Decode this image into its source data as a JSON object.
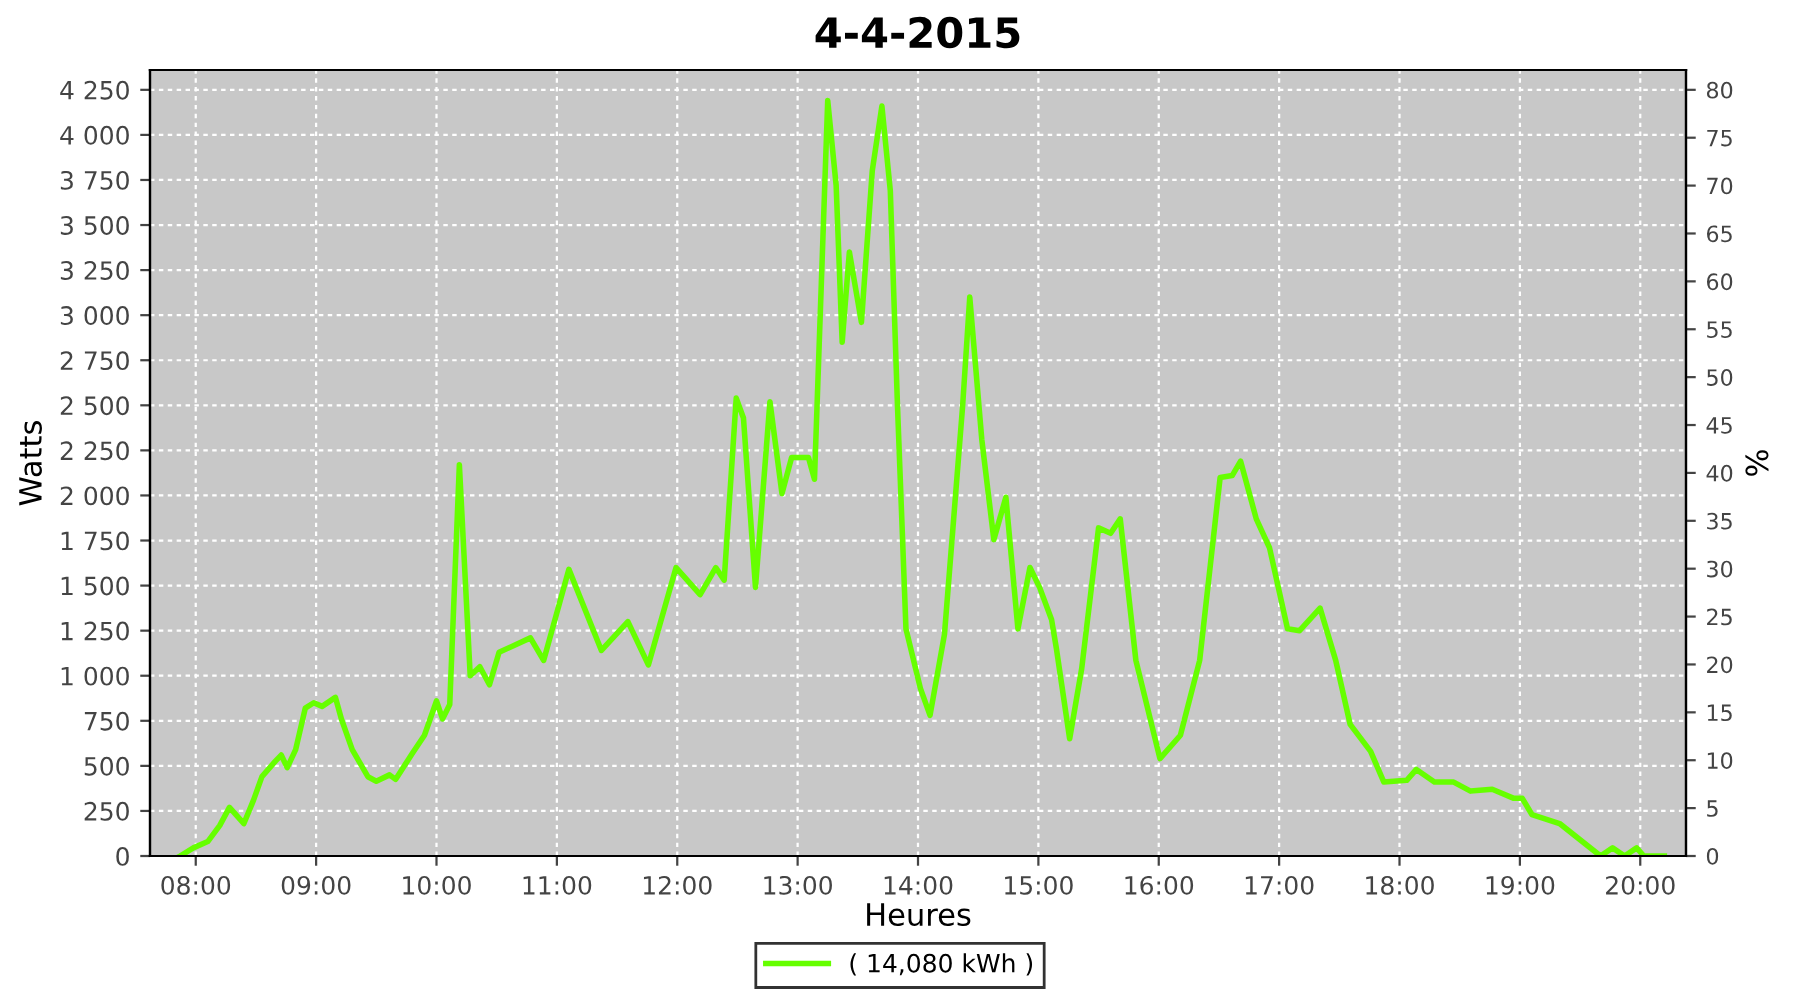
{
  "chart_data": {
    "type": "line",
    "title": "4-4-2015",
    "xlabel": "Heures",
    "ylabel": "Watts",
    "y2label": "%",
    "xlim": [
      7.62,
      20.38
    ],
    "xticks": [
      {
        "value": 8,
        "label": "08:00"
      },
      {
        "value": 9,
        "label": "09:00"
      },
      {
        "value": 10,
        "label": "10:00"
      },
      {
        "value": 11,
        "label": "11:00"
      },
      {
        "value": 12,
        "label": "12:00"
      },
      {
        "value": 13,
        "label": "13:00"
      },
      {
        "value": 14,
        "label": "14:00"
      },
      {
        "value": 15,
        "label": "15:00"
      },
      {
        "value": 16,
        "label": "16:00"
      },
      {
        "value": 17,
        "label": "17:00"
      },
      {
        "value": 18,
        "label": "18:00"
      },
      {
        "value": 19,
        "label": "19:00"
      },
      {
        "value": 20,
        "label": "20:00"
      }
    ],
    "ylim": [
      0,
      4360
    ],
    "yticks": [
      0,
      250,
      500,
      750,
      {
        "value": 1000,
        "label": "1 000"
      },
      {
        "value": 1250,
        "label": "1 250"
      },
      {
        "value": 1500,
        "label": "1 500"
      },
      {
        "value": 1750,
        "label": "1 750"
      },
      {
        "value": 2000,
        "label": "2 000"
      },
      {
        "value": 2250,
        "label": "2 250"
      },
      {
        "value": 2500,
        "label": "2 500"
      },
      {
        "value": 2750,
        "label": "2 750"
      },
      {
        "value": 3000,
        "label": "3 000"
      },
      {
        "value": 3250,
        "label": "3 250"
      },
      {
        "value": 3500,
        "label": "3 500"
      },
      {
        "value": 3750,
        "label": "3 750"
      },
      {
        "value": 4000,
        "label": "4 000"
      },
      {
        "value": 4250,
        "label": "4 250"
      }
    ],
    "y2lim": [
      0,
      82.07
    ],
    "y2ticks": [
      0,
      5,
      10,
      15,
      20,
      25,
      30,
      35,
      40,
      45,
      50,
      55,
      60,
      65,
      70,
      75,
      80
    ],
    "grid": true,
    "legend": "bottom",
    "line_style": "solid",
    "series": [
      {
        "name": "( 14,080 kWh )",
        "color": "#66ff00",
        "x": [
          7.87,
          7.98,
          8.1,
          8.2,
          8.28,
          8.4,
          8.48,
          8.55,
          8.66,
          8.71,
          8.76,
          8.83,
          8.91,
          8.98,
          9.05,
          9.16,
          9.21,
          9.3,
          9.43,
          9.5,
          9.61,
          9.66,
          9.8,
          9.9,
          10.0,
          10.05,
          10.11,
          10.19,
          10.28,
          10.36,
          10.44,
          10.52,
          10.78,
          10.89,
          11.1,
          11.37,
          11.59,
          11.76,
          11.99,
          12.19,
          12.32,
          12.39,
          12.49,
          12.55,
          12.65,
          12.77,
          12.87,
          12.95,
          13.09,
          13.14,
          13.25,
          13.32,
          13.37,
          13.43,
          13.53,
          13.62,
          13.7,
          13.77,
          13.83,
          13.9,
          14.02,
          14.1,
          14.22,
          14.37,
          14.43,
          14.53,
          14.63,
          14.73,
          14.83,
          14.93,
          15.01,
          15.11,
          15.15,
          15.26,
          15.36,
          15.5,
          15.6,
          15.68,
          15.81,
          16.01,
          16.18,
          16.34,
          16.51,
          16.61,
          16.68,
          16.81,
          16.92,
          17.07,
          17.17,
          17.34,
          17.47,
          17.59,
          17.76,
          17.87,
          18.06,
          18.14,
          18.29,
          18.45,
          18.59,
          18.77,
          18.95,
          19.02,
          19.1,
          19.33,
          19.5,
          19.67,
          19.77,
          19.87,
          19.97,
          20.03,
          20.2
        ],
        "values": [
          0,
          45,
          80,
          170,
          270,
          180,
          310,
          440,
          525,
          560,
          490,
          590,
          820,
          850,
          830,
          880,
          760,
          590,
          440,
          415,
          450,
          425,
          570,
          670,
          860,
          760,
          840,
          2170,
          1000,
          1050,
          950,
          1130,
          1210,
          1085,
          1590,
          1140,
          1300,
          1060,
          1600,
          1450,
          1600,
          1530,
          2540,
          2430,
          1490,
          2520,
          2010,
          2210,
          2210,
          2090,
          4190,
          3720,
          2850,
          3350,
          2960,
          3800,
          4160,
          3690,
          2490,
          1260,
          930,
          780,
          1230,
          2490,
          3100,
          2310,
          1755,
          1990,
          1260,
          1600,
          1490,
          1310,
          1150,
          650,
          1040,
          1820,
          1790,
          1870,
          1085,
          540,
          670,
          1085,
          2100,
          2110,
          2190,
          1870,
          1710,
          1260,
          1250,
          1375,
          1085,
          730,
          580,
          410,
          420,
          480,
          410,
          410,
          360,
          370,
          320,
          320,
          230,
          180,
          90,
          0,
          45,
          0,
          45,
          0,
          0
        ]
      }
    ]
  }
}
